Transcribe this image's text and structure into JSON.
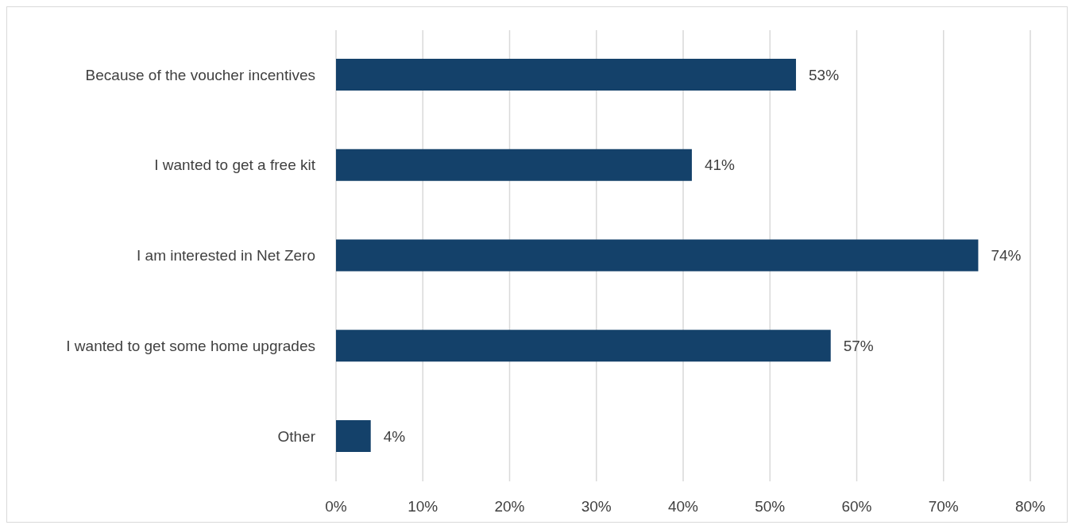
{
  "chart_data": {
    "type": "bar",
    "orientation": "horizontal",
    "categories": [
      "Because of the voucher incentives",
      "I wanted to get a free kit",
      "I am interested in Net Zero",
      "I wanted to get some home upgrades",
      "Other"
    ],
    "values": [
      53,
      41,
      74,
      57,
      4
    ],
    "value_labels": [
      "53%",
      "41%",
      "74%",
      "57%",
      "4%"
    ],
    "color": "#14416a",
    "xlim": [
      0,
      80
    ],
    "xticks": [
      {
        "value": 0,
        "label": "0%"
      },
      {
        "value": 10,
        "label": "10%"
      },
      {
        "value": 20,
        "label": "20%"
      },
      {
        "value": 30,
        "label": "30%"
      },
      {
        "value": 40,
        "label": "40%"
      },
      {
        "value": 50,
        "label": "50%"
      },
      {
        "value": 60,
        "label": "60%"
      },
      {
        "value": 70,
        "label": "70%"
      },
      {
        "value": 80,
        "label": "80%"
      }
    ],
    "grid": "x"
  }
}
